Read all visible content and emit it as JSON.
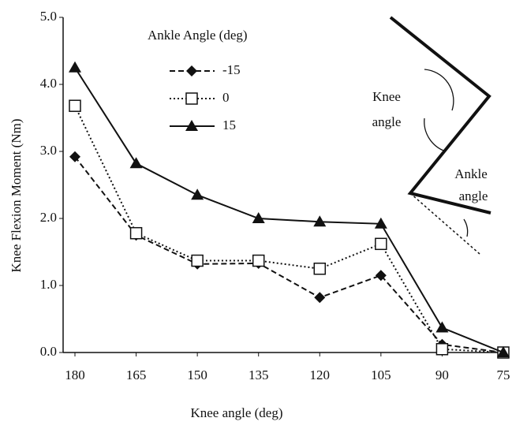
{
  "chart_data": {
    "type": "line",
    "x_label": "Knee angle (deg)",
    "y_label": "Knee Flexion Moment (Nm)",
    "legend_title": "Ankle Angle (deg)",
    "legend": "upper-left",
    "x": [
      180,
      165,
      150,
      135,
      120,
      105,
      90,
      75
    ],
    "xlim": [
      180,
      75
    ],
    "xticks": [
      180,
      165,
      150,
      135,
      120,
      105,
      90,
      75
    ],
    "ylim": [
      0,
      5
    ],
    "yticks": [
      {
        "value": 0,
        "label": "0.0"
      },
      {
        "value": 1,
        "label": "1.0"
      },
      {
        "value": 2,
        "label": "2.0"
      },
      {
        "value": 3,
        "label": "3.0"
      },
      {
        "value": 4,
        "label": "4.0"
      },
      {
        "value": 5,
        "label": "5.0"
      }
    ],
    "series": [
      {
        "name": "-15",
        "color": "#111111",
        "marker": "diamond",
        "dash": "7,4",
        "values": [
          2.92,
          1.75,
          1.32,
          1.33,
          0.82,
          1.15,
          0.12,
          0.0
        ]
      },
      {
        "name": "0",
        "color": "#111111",
        "marker": "square",
        "dash": "2,3",
        "values": [
          3.68,
          1.78,
          1.37,
          1.37,
          1.25,
          1.62,
          0.05,
          0.0
        ]
      },
      {
        "name": "15",
        "color": "#111111",
        "marker": "triangle",
        "dash": "none",
        "values": [
          4.25,
          2.82,
          2.35,
          2.0,
          1.95,
          1.92,
          0.37,
          0.0
        ]
      }
    ],
    "annotations": [
      "Knee",
      "angle",
      "Ankle",
      "angle"
    ]
  }
}
